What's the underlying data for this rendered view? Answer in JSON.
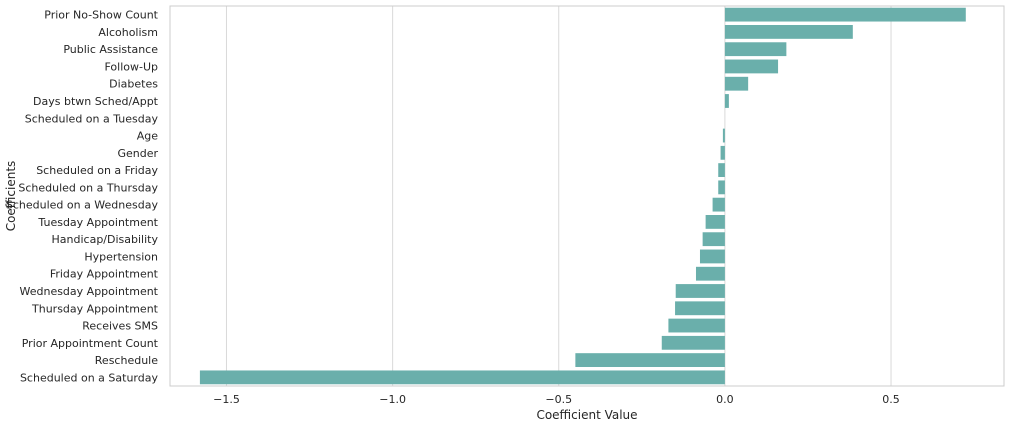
{
  "chart_data": {
    "type": "bar",
    "orientation": "horizontal",
    "xlabel": "Coefficient Value",
    "ylabel": "Coefficients",
    "xlim": [
      -1.67,
      0.84
    ],
    "xticks": [
      -1.5,
      -1.0,
      -0.5,
      0.0,
      0.5
    ],
    "xtick_labels": [
      "−1.5",
      "−1.0",
      "−0.5",
      "0.0",
      "0.5"
    ],
    "grid": "vertical",
    "legend": "none",
    "bar_color": "#6AAFAB",
    "categories": [
      "Prior No-Show Count",
      "Alcoholism",
      "Public Assistance",
      "Follow-Up",
      "Diabetes",
      "Days btwn Sched/Appt",
      "Scheduled on a Tuesday",
      "Age",
      "Gender",
      "Scheduled on a Friday",
      "Scheduled on a Thursday",
      "Scheduled on a Wednesday",
      "Tuesday Appointment",
      "Handicap/Disability",
      "Hypertension",
      "Friday Appointment",
      "Wednesday Appointment",
      "Thursday Appointment",
      "Receives SMS",
      "Prior Appointment Count",
      "Reschedule",
      "Scheduled on a Saturday"
    ],
    "values": [
      0.725,
      0.385,
      0.185,
      0.16,
      0.07,
      0.012,
      0.0,
      -0.006,
      -0.013,
      -0.02,
      -0.02,
      -0.037,
      -0.058,
      -0.067,
      -0.075,
      -0.087,
      -0.148,
      -0.15,
      -0.17,
      -0.19,
      -0.45,
      -1.58
    ]
  }
}
